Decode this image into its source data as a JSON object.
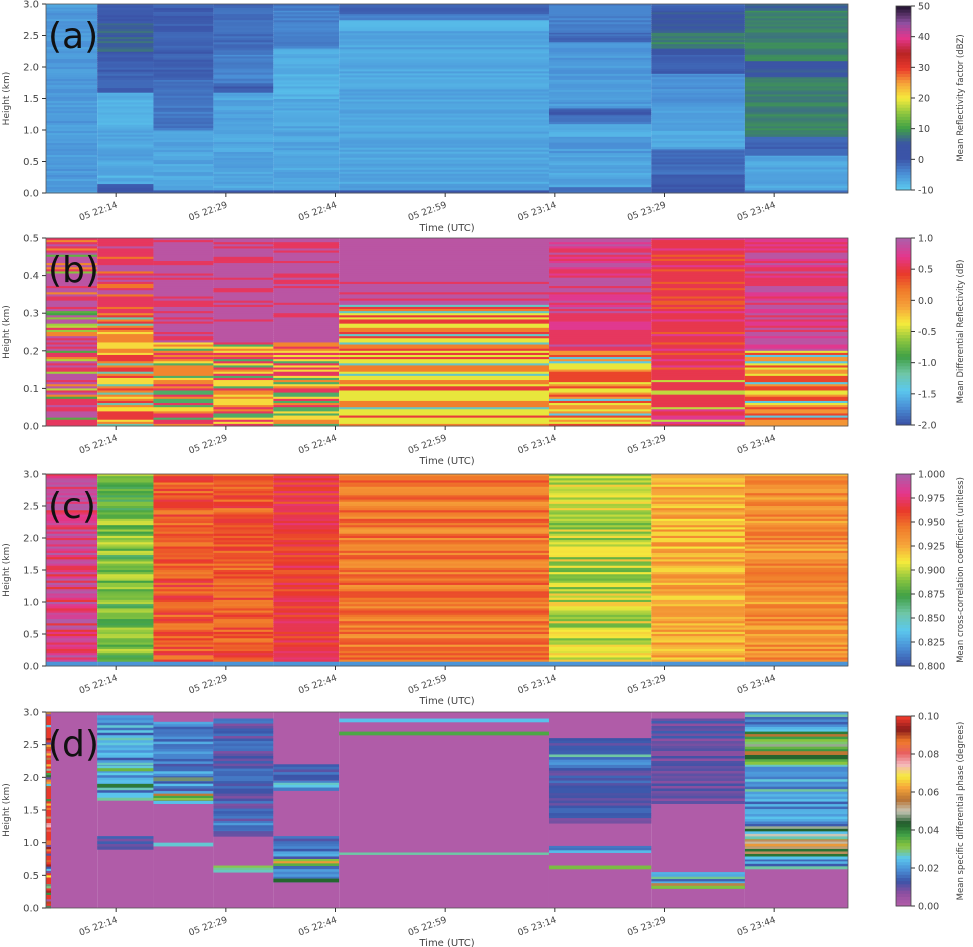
{
  "chart_data": [
    {
      "id": "a",
      "type": "heatmap",
      "panel_label": "(a)",
      "xlabel": "Time (UTC)",
      "ylabel": "Height (km)",
      "ylim": [
        0,
        3.0
      ],
      "yticks": [
        "0.0",
        "0.5",
        "1.0",
        "1.5",
        "2.0",
        "2.5",
        "3.0"
      ],
      "ytick_values": [
        0,
        0.5,
        1.0,
        1.5,
        2.0,
        2.5,
        3.0
      ],
      "colorbar": {
        "label": "Mean Reflectivity factor (dBZ)",
        "range": [
          -10,
          50
        ],
        "ticks": [
          "-10",
          "0",
          "10",
          "20",
          "30",
          "40",
          "50"
        ],
        "tick_values": [
          -10,
          0,
          10,
          20,
          30,
          40,
          50
        ],
        "colors": [
          "#5bc8ee",
          "#4a8fd6",
          "#3b54a8",
          "#3b55a5",
          "#3fa046",
          "#8cc63f",
          "#f6eb3c",
          "#f6a33a",
          "#e9382b",
          "#b82424",
          "#e4368d",
          "#8e4fa0",
          "#2a1838"
        ]
      },
      "segments": [
        {
          "bands": [
            [
              0,
              2.95,
              -6
            ],
            [
              2.95,
              3.0,
              -8
            ]
          ]
        },
        {
          "bands": [
            [
              0,
              0.05,
              0
            ],
            [
              0.05,
              0.15,
              -1
            ],
            [
              0.15,
              0.25,
              -7
            ],
            [
              0.25,
              0.3,
              -8
            ],
            [
              0.3,
              1.05,
              -7
            ],
            [
              1.05,
              1.6,
              -8
            ],
            [
              1.6,
              2.25,
              -1
            ],
            [
              2.25,
              2.7,
              6
            ],
            [
              2.7,
              2.85,
              0
            ],
            [
              2.85,
              3.0,
              -1
            ]
          ]
        },
        {
          "bands": [
            [
              0,
              0.05,
              0
            ],
            [
              0.05,
              0.3,
              -7
            ],
            [
              0.3,
              1.0,
              -7
            ],
            [
              1.0,
              1.8,
              -3
            ],
            [
              1.8,
              3.0,
              -1
            ]
          ]
        },
        {
          "bands": [
            [
              0,
              0.05,
              0
            ],
            [
              0.05,
              1.6,
              -7
            ],
            [
              1.6,
              1.75,
              -1
            ],
            [
              1.75,
              2.2,
              -4
            ],
            [
              2.2,
              3.0,
              -2
            ]
          ]
        },
        {
          "bands": [
            [
              0,
              0.05,
              0
            ],
            [
              0.05,
              1.5,
              -7
            ],
            [
              1.5,
              2.3,
              -8
            ],
            [
              2.3,
              2.9,
              -4
            ],
            [
              2.9,
              3.0,
              -3
            ]
          ]
        },
        {
          "bands": [
            [
              0,
              0.05,
              0
            ],
            [
              0.05,
              2.6,
              -7
            ],
            [
              2.6,
              2.75,
              -8
            ],
            [
              2.75,
              2.85,
              -4
            ],
            [
              2.85,
              3.0,
              -1
            ]
          ]
        },
        {
          "bands": [
            [
              0,
              0.1,
              -2
            ],
            [
              0.1,
              0.6,
              -7
            ],
            [
              0.6,
              0.9,
              -6
            ],
            [
              0.9,
              1.1,
              -8
            ],
            [
              1.1,
              1.25,
              -3
            ],
            [
              1.25,
              1.35,
              -1
            ],
            [
              1.35,
              2.4,
              -6
            ],
            [
              2.4,
              2.55,
              -2
            ],
            [
              2.55,
              3.0,
              -4
            ]
          ]
        },
        {
          "bands": [
            [
              0,
              0.1,
              -1
            ],
            [
              0.1,
              0.3,
              0
            ],
            [
              0.3,
              0.7,
              -2
            ],
            [
              0.7,
              1.4,
              -7
            ],
            [
              1.4,
              1.9,
              -5
            ],
            [
              1.9,
              2.2,
              -1
            ],
            [
              2.2,
              2.3,
              4
            ],
            [
              2.3,
              2.55,
              8
            ],
            [
              2.55,
              2.9,
              5
            ],
            [
              2.9,
              3.0,
              -1
            ]
          ]
        },
        {
          "bands": [
            [
              0,
              0.05,
              -2
            ],
            [
              0.05,
              0.6,
              -7
            ],
            [
              0.6,
              0.9,
              -1
            ],
            [
              0.9,
              1.85,
              8
            ],
            [
              1.85,
              2.1,
              5
            ],
            [
              2.1,
              2.9,
              8
            ],
            [
              2.9,
              3.0,
              6
            ]
          ]
        }
      ]
    },
    {
      "id": "b",
      "type": "heatmap",
      "panel_label": "(b)",
      "xlabel": "Time (UTC)",
      "ylabel": "Height (km)",
      "ylim": [
        0,
        0.5
      ],
      "yticks": [
        "0.0",
        "0.1",
        "0.2",
        "0.3",
        "0.4",
        "0.5"
      ],
      "ytick_values": [
        0,
        0.1,
        0.2,
        0.3,
        0.4,
        0.5
      ],
      "colorbar": {
        "label": "Mean Differential Reflectivity (dB)",
        "range": [
          -2.0,
          1.0
        ],
        "ticks": [
          "-2.0",
          "-1.5",
          "-1.0",
          "-0.5",
          "0.0",
          "0.5",
          "1.0"
        ],
        "tick_values": [
          -2.0,
          -1.5,
          -1.0,
          -0.5,
          0.0,
          0.5,
          1.0
        ],
        "colors": [
          "#3b54a8",
          "#4a8fd6",
          "#5bc8ee",
          "#6fc6a6",
          "#3fa046",
          "#8cc63f",
          "#f6eb3c",
          "#f6a33a",
          "#f07a2a",
          "#e9382b",
          "#e4368d",
          "#b05ca8"
        ]
      },
      "segments": [
        {
          "pattern": "mixed-purple"
        },
        {
          "pattern": "mixed-warm-top-purple"
        },
        {
          "pattern": "mixed-purple-top"
        },
        {
          "pattern": "mixed-purple-top"
        },
        {
          "pattern": "mixed-purple-top"
        },
        {
          "pattern": "mixed-warm-mid"
        },
        {
          "pattern": "mixed-red-top"
        },
        {
          "pattern": "mixed-red"
        },
        {
          "pattern": "mixed-red-top"
        }
      ]
    },
    {
      "id": "c",
      "type": "heatmap",
      "panel_label": "(c)",
      "xlabel": "Time (UTC)",
      "ylabel": "Height (km)",
      "ylim": [
        0,
        3.0
      ],
      "yticks": [
        "0.0",
        "0.5",
        "1.0",
        "1.5",
        "2.0",
        "2.5",
        "3.0"
      ],
      "ytick_values": [
        0,
        0.5,
        1.0,
        1.5,
        2.0,
        2.5,
        3.0
      ],
      "colorbar": {
        "label": "Mean cross-correlation coefficient (unitless)",
        "range": [
          0.8,
          1.0
        ],
        "ticks": [
          "0.800",
          "0.825",
          "0.850",
          "0.875",
          "0.900",
          "0.925",
          "0.950",
          "0.975",
          "1.000"
        ],
        "tick_values": [
          0.8,
          0.825,
          0.85,
          0.875,
          0.9,
          0.925,
          0.95,
          0.975,
          1.0
        ],
        "colors": [
          "#3b54a8",
          "#4a8fd6",
          "#5bc8ee",
          "#6fc6a6",
          "#3fa046",
          "#8cc63f",
          "#f6eb3c",
          "#f6a33a",
          "#f07a2a",
          "#e9382b",
          "#e4368d",
          "#b05ca8"
        ]
      },
      "segments": [
        {
          "mean": 0.985,
          "spread": 0.02
        },
        {
          "mean": 0.885,
          "spread": 0.02
        },
        {
          "mean": 0.955,
          "spread": 0.015
        },
        {
          "mean": 0.955,
          "spread": 0.015
        },
        {
          "mean": 0.965,
          "spread": 0.012
        },
        {
          "mean": 0.945,
          "spread": 0.015
        },
        {
          "mean": 0.9,
          "spread": 0.02
        },
        {
          "mean": 0.925,
          "spread": 0.015
        },
        {
          "mean": 0.935,
          "spread": 0.015
        }
      ]
    },
    {
      "id": "d",
      "type": "heatmap",
      "panel_label": "(d)",
      "xlabel": "Time (UTC)",
      "ylabel": "Height (km)",
      "ylim": [
        0,
        3.0
      ],
      "yticks": [
        "0.0",
        "0.5",
        "1.0",
        "1.5",
        "2.0",
        "2.5",
        "3.0"
      ],
      "ytick_values": [
        0,
        0.5,
        1.0,
        1.5,
        2.0,
        2.5,
        3.0
      ],
      "colorbar": {
        "label": "Mean specific differential phase (degrees)",
        "range": [
          0.0,
          0.1
        ],
        "ticks": [
          "0.00",
          "0.02",
          "0.04",
          "0.06",
          "0.08",
          "0.10"
        ],
        "tick_values": [
          0.0,
          0.02,
          0.04,
          0.06,
          0.08,
          0.1
        ],
        "colors": [
          "#b05ca8",
          "#8e4fa0",
          "#3b54a8",
          "#4a8fd6",
          "#5bc8ee",
          "#8cc63f",
          "#3fa046",
          "#1f5a2a",
          "#c8c8b8",
          "#b87333",
          "#f6a33a",
          "#f6eb3c",
          "#f4b8c0",
          "#e86060",
          "#f07a2a",
          "#8a1a1a",
          "#e9382b"
        ]
      },
      "segments": [
        {
          "pattern": "left-strip"
        },
        {
          "bands": [
            [
              1.65,
              2.95,
              0.02
            ],
            [
              2.1,
              2.18,
              0.04
            ],
            [
              1.85,
              1.9,
              0.03
            ],
            [
              0.9,
              1.1,
              0.012
            ]
          ]
        },
        {
          "bands": [
            [
              1.6,
              2.85,
              0.018
            ],
            [
              1.65,
              1.75,
              0.045
            ],
            [
              1.95,
              2.0,
              0.035
            ],
            [
              0.95,
              1.0,
              0.02
            ]
          ]
        },
        {
          "bands": [
            [
              1.1,
              2.9,
              0.012
            ],
            [
              1.2,
              1.3,
              0.02
            ],
            [
              0.55,
              0.65,
              0.022
            ]
          ]
        },
        {
          "bands": [
            [
              1.8,
              2.2,
              0.012
            ],
            [
              1.85,
              1.95,
              0.022
            ],
            [
              0.4,
              1.1,
              0.016
            ],
            [
              0.65,
              0.75,
              0.05
            ],
            [
              0.4,
              0.45,
              0.045
            ]
          ]
        },
        {
          "bands": [
            [
              2.85,
              2.9,
              0.035
            ],
            [
              2.65,
              2.7,
              0.032
            ],
            [
              0.82,
              0.85,
              0.02
            ]
          ]
        },
        {
          "bands": [
            [
              1.3,
              2.6,
              0.012
            ],
            [
              2.15,
              2.35,
              0.02
            ],
            [
              0.85,
              0.95,
              0.025
            ],
            [
              0.6,
              0.65,
              0.04
            ]
          ]
        },
        {
          "bands": [
            [
              1.6,
              2.9,
              0.01
            ],
            [
              0.3,
              0.55,
              0.022
            ],
            [
              0.3,
              0.38,
              0.04
            ]
          ]
        },
        {
          "bands": [
            [
              0.6,
              3.0,
              0.02
            ],
            [
              2.2,
              2.7,
              0.042
            ],
            [
              2.35,
              2.4,
              0.065
            ],
            [
              0.75,
              1.25,
              0.04
            ],
            [
              0.95,
              1.05,
              0.055
            ]
          ]
        }
      ]
    }
  ],
  "shared_x": {
    "label": "Time (UTC)",
    "ticks": [
      "05 22:14",
      "05 22:29",
      "05 22:44",
      "05 22:59",
      "05 23:14",
      "05 23:29",
      "05 23:44"
    ],
    "tick_minutes": [
      0,
      15,
      30,
      45,
      60,
      75,
      90
    ],
    "xlim_minutes": [
      -9.6,
      100.1
    ],
    "segment_edges_minutes": [
      -9.6,
      -2.6,
      5.1,
      13.3,
      21.5,
      30.5,
      59.2,
      73.2,
      86.0,
      100.1
    ]
  }
}
